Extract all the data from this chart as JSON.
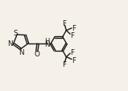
{
  "bg_color": "#f5f0e8",
  "line_color": "#1a1a1a",
  "line_width": 1.0,
  "font_size": 5.8,
  "fig_width": 1.59,
  "fig_height": 1.14,
  "dpi": 100,
  "xlim": [
    0,
    10
  ],
  "ylim": [
    0,
    7.2
  ]
}
